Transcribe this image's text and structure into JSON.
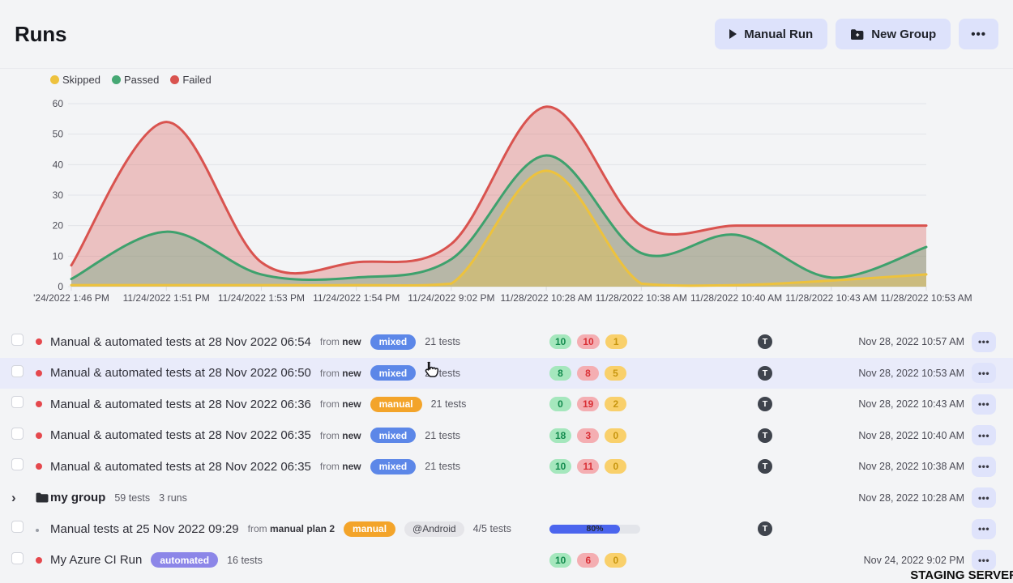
{
  "page": {
    "title": "Runs"
  },
  "header": {
    "manual_run_label": "Manual Run",
    "new_group_label": "New Group",
    "more_label": "•••"
  },
  "legend": {
    "items": [
      {
        "label": "Skipped",
        "color": "#eec23e"
      },
      {
        "label": "Passed",
        "color": "#46a874"
      },
      {
        "label": "Failed",
        "color": "#d9534f"
      }
    ]
  },
  "chart_data": {
    "type": "area",
    "x": [
      "'24/2022 1:46 PM",
      "11/24/2022 1:51 PM",
      "11/24/2022 1:53 PM",
      "11/24/2022 1:54 PM",
      "11/24/2022 9:02 PM",
      "11/28/2022 10:28 AM",
      "11/28/2022 10:38 AM",
      "11/28/2022 10:40 AM",
      "11/28/2022 10:43 AM",
      "11/28/2022 10:53 AM"
    ],
    "series": [
      {
        "name": "Failed",
        "color": "#d9534f",
        "fill": "rgba(220,90,86,0.33)",
        "values": [
          7,
          54,
          8,
          8,
          14,
          59,
          20,
          20,
          20,
          20
        ]
      },
      {
        "name": "Passed",
        "color": "#3ea16d",
        "fill": "rgba(62,161,109,0.30)",
        "values": [
          2.5,
          18,
          4,
          3,
          9,
          43,
          11,
          17,
          3,
          13
        ]
      },
      {
        "name": "Skipped",
        "color": "#edc23d",
        "fill": "rgba(237,194,61,0.38)",
        "values": [
          0.5,
          0.5,
          0.5,
          0.5,
          1,
          38,
          1,
          0.5,
          2,
          4
        ]
      }
    ],
    "ylim": [
      0,
      60
    ],
    "yticks": [
      0,
      10,
      20,
      30,
      40,
      50,
      60
    ],
    "grid": true,
    "legend_position": "top-left"
  },
  "badge_colors": {
    "mixed": "#5c87e8",
    "manual": "#f3a42a",
    "automated": "#8c86e8"
  },
  "runs": [
    {
      "type": "run",
      "dot": "red",
      "title": "Manual & automated tests at 28 Nov 2022 06:54",
      "from_label": "from",
      "plan": "new",
      "badge": "mixed",
      "tests": "21 tests",
      "passed": 10,
      "failed": 10,
      "skipped": 1,
      "avatar": "T",
      "timestamp": "Nov 28, 2022 10:57 AM"
    },
    {
      "type": "run",
      "dot": "red",
      "title": "Manual & automated tests at 28 Nov 2022 06:50",
      "from_label": "from",
      "plan": "new",
      "badge": "mixed",
      "tests": "21 tests",
      "passed": 8,
      "failed": 8,
      "skipped": 5,
      "avatar": "T",
      "timestamp": "Nov 28, 2022 10:53 AM",
      "highlighted": true
    },
    {
      "type": "run",
      "dot": "red",
      "title": "Manual & automated tests at 28 Nov 2022 06:36",
      "from_label": "from",
      "plan": "new",
      "badge": "manual",
      "tests": "21 tests",
      "passed": 0,
      "failed": 19,
      "skipped": 2,
      "avatar": "T",
      "timestamp": "Nov 28, 2022 10:43 AM"
    },
    {
      "type": "run",
      "dot": "red",
      "title": "Manual & automated tests at 28 Nov 2022 06:35",
      "from_label": "from",
      "plan": "new",
      "badge": "mixed",
      "tests": "21 tests",
      "passed": 18,
      "failed": 3,
      "skipped": 0,
      "avatar": "T",
      "timestamp": "Nov 28, 2022 10:40 AM"
    },
    {
      "type": "run",
      "dot": "red",
      "title": "Manual & automated tests at 28 Nov 2022 06:35",
      "from_label": "from",
      "plan": "new",
      "badge": "mixed",
      "tests": "21 tests",
      "passed": 10,
      "failed": 11,
      "skipped": 0,
      "avatar": "T",
      "timestamp": "Nov 28, 2022 10:38 AM"
    },
    {
      "type": "group",
      "title": "my group",
      "tests": "59 tests",
      "runs_count": "3 runs",
      "timestamp": "Nov 28, 2022 10:28 AM"
    },
    {
      "type": "run",
      "dot": "gray",
      "title": "Manual tests at 25 Nov 2022 09:29",
      "from_label": "from",
      "plan": "manual plan 2",
      "badge": "manual",
      "tag": "@Android",
      "tests": "4/5 tests",
      "progress_label": "80%",
      "progress_value": 78,
      "avatar": "T",
      "timestamp": ""
    },
    {
      "type": "run",
      "dot": "red",
      "title": "My Azure CI Run",
      "badge": "automated",
      "tests": "16 tests",
      "passed": 10,
      "failed": 6,
      "skipped": 0,
      "timestamp": "Nov 24, 2022 9:02 PM"
    }
  ],
  "watermark": "STAGING SERVER"
}
